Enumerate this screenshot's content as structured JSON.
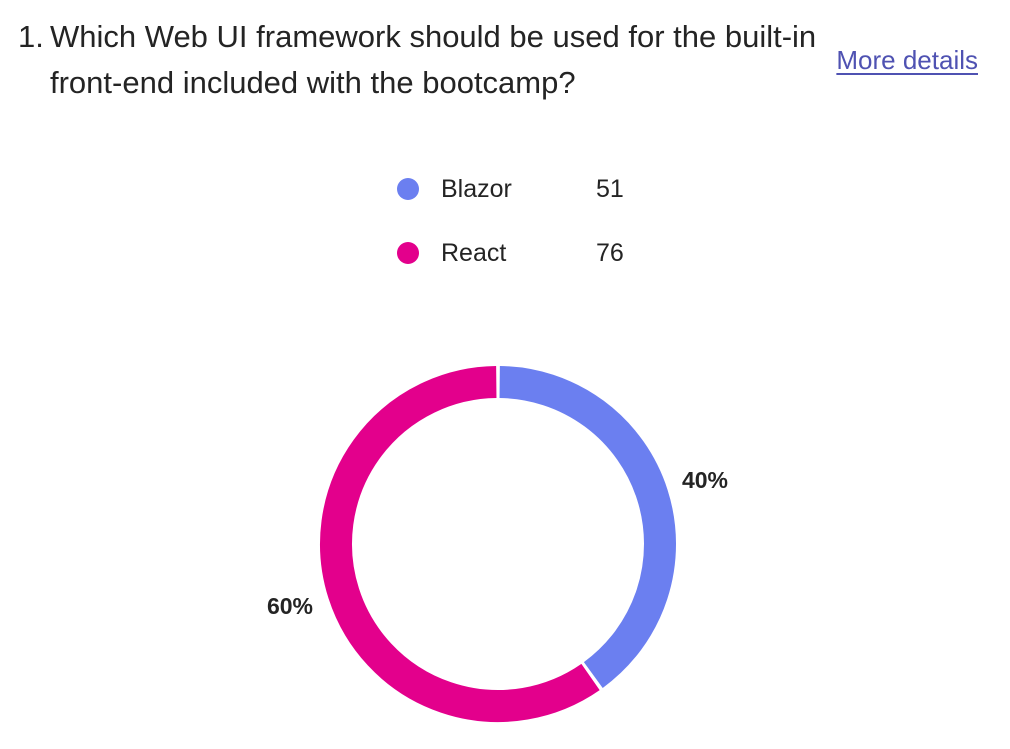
{
  "question": {
    "number": "1.",
    "text": "Which Web UI framework should be used for the built-in front-end included with the bootcamp?",
    "more_details_label": "More details"
  },
  "colors": {
    "blazor": "#6b7ff0",
    "react": "#e3008c"
  },
  "chart_data": {
    "type": "pie",
    "donut": true,
    "categories": [
      "Blazor",
      "React"
    ],
    "values": [
      51,
      76
    ],
    "percent_labels": [
      "40%",
      "60%"
    ],
    "colors": [
      "#6b7ff0",
      "#e3008c"
    ],
    "legend_placement": "top"
  }
}
